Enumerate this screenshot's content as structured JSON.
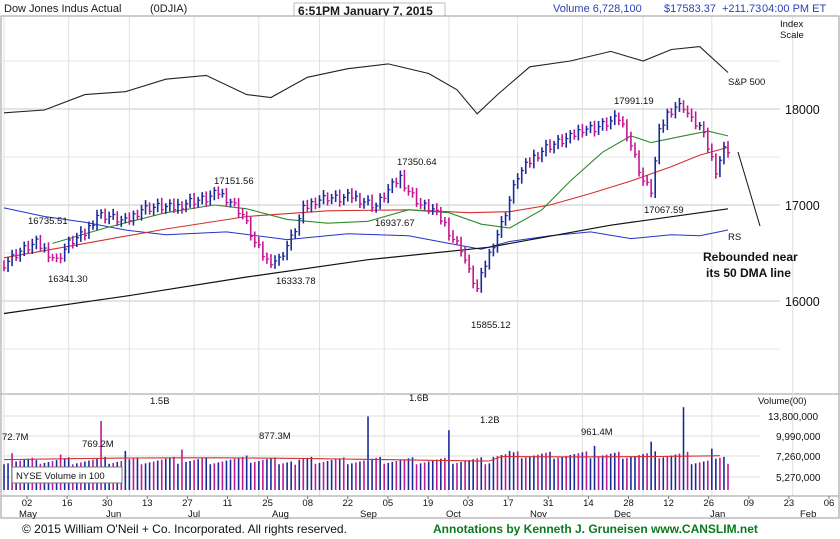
{
  "header": {
    "name": "Dow Jones Indus Actual",
    "symbol": "(0DJIA)",
    "time": "6:51PM January 7, 2015",
    "volume": "Volume 6,728,100",
    "price": "$17583.37",
    "change": "+211.73",
    "close_time": "04:00 PM ET"
  },
  "axis": {
    "index_scale_1": "Index",
    "index_scale_2": "Scale",
    "price_ticks": [
      "18000",
      "17000",
      "16000"
    ],
    "volume_title": "Volume(00)",
    "volume_ticks": [
      "13,800,000",
      "9,990,000",
      "7,260,000",
      "5,270,000"
    ],
    "date_ticks": [
      "02",
      "16",
      "30",
      "13",
      "27",
      "11",
      "25",
      "08",
      "22",
      "05",
      "19",
      "03",
      "17",
      "31",
      "14",
      "28",
      "12",
      "26",
      "09",
      "23",
      "06"
    ],
    "months": [
      "May",
      "Jun",
      "Jul",
      "Aug",
      "Sep",
      "Oct",
      "Nov",
      "Dec",
      "Jan",
      "Feb"
    ]
  },
  "labels": {
    "sp500": "S&P 500",
    "rs": "RS",
    "nyse_volume": "NYSE Volume in 100",
    "callout_1": "Rebounded near",
    "callout_2": "its 50 DMA line"
  },
  "footer": {
    "copyright": "© 2015  William O'Neil + Co. Incorporated. All rights reserved.",
    "annotations": "Annotations by Kenneth J. Gruneisen www.CANSLIM.net"
  },
  "colors": {
    "up": "#1a2a9a",
    "down": "#c2188f",
    "ma50": "#2e8b2e",
    "ma200": "#111111",
    "ma10": "#d43030",
    "rs": "#2233cc",
    "sp": "#222222",
    "vol_avg": "#d43030"
  },
  "chart_data": {
    "type": "candlestick",
    "title": "Dow Jones Indus Actual",
    "ylim": [
      15000,
      19000
    ],
    "price_annotations": [
      {
        "label": "16735.51",
        "value": 16735.51
      },
      {
        "label": "16341.30",
        "value": 16341.3
      },
      {
        "label": "17151.56",
        "value": 17151.56
      },
      {
        "label": "16333.78",
        "value": 16333.78
      },
      {
        "label": "16937.67",
        "value": 16937.67
      },
      {
        "label": "17350.64",
        "value": 17350.64
      },
      {
        "label": "15855.12",
        "value": 15855.12
      },
      {
        "label": "17991.19",
        "value": 17991.19
      },
      {
        "label": "17067.59",
        "value": 17067.59
      }
    ],
    "volume_annotations": [
      {
        "label": "72.7M"
      },
      {
        "label": "769.2M"
      },
      {
        "label": "1.5B"
      },
      {
        "label": "877.3M"
      },
      {
        "label": "1.6B"
      },
      {
        "label": "1.2B"
      },
      {
        "label": "961.4M"
      }
    ],
    "close_series": [
      {
        "t": 0,
        "v": 16390
      },
      {
        "t": 4,
        "v": 16520
      },
      {
        "t": 8,
        "v": 16600
      },
      {
        "t": 11,
        "v": 16500
      },
      {
        "t": 13,
        "v": 16420
      },
      {
        "t": 16,
        "v": 16600
      },
      {
        "t": 20,
        "v": 16700
      },
      {
        "t": 23,
        "v": 16900
      },
      {
        "t": 26,
        "v": 16880
      },
      {
        "t": 30,
        "v": 16820
      },
      {
        "t": 34,
        "v": 16960
      },
      {
        "t": 38,
        "v": 16980
      },
      {
        "t": 42,
        "v": 16970
      },
      {
        "t": 46,
        "v": 17040
      },
      {
        "t": 50,
        "v": 17060
      },
      {
        "t": 53,
        "v": 17130
      },
      {
        "t": 56,
        "v": 17040
      },
      {
        "t": 59,
        "v": 16900
      },
      {
        "t": 62,
        "v": 16600
      },
      {
        "t": 65,
        "v": 16420
      },
      {
        "t": 68,
        "v": 16430
      },
      {
        "t": 71,
        "v": 16650
      },
      {
        "t": 74,
        "v": 16950
      },
      {
        "t": 77,
        "v": 17050
      },
      {
        "t": 80,
        "v": 17080
      },
      {
        "t": 83,
        "v": 17060
      },
      {
        "t": 86,
        "v": 17090
      },
      {
        "t": 89,
        "v": 17040
      },
      {
        "t": 92,
        "v": 16990
      },
      {
        "t": 95,
        "v": 17150
      },
      {
        "t": 98,
        "v": 17290
      },
      {
        "t": 100,
        "v": 17150
      },
      {
        "t": 103,
        "v": 17000
      },
      {
        "t": 106,
        "v": 16950
      },
      {
        "t": 109,
        "v": 16800
      },
      {
        "t": 111,
        "v": 16650
      },
      {
        "t": 113,
        "v": 16550
      },
      {
        "t": 115,
        "v": 16300
      },
      {
        "t": 117,
        "v": 16120
      },
      {
        "t": 119,
        "v": 16380
      },
      {
        "t": 121,
        "v": 16600
      },
      {
        "t": 123,
        "v": 16800
      },
      {
        "t": 125,
        "v": 17050
      },
      {
        "t": 127,
        "v": 17300
      },
      {
        "t": 129,
        "v": 17400
      },
      {
        "t": 131,
        "v": 17500
      },
      {
        "t": 134,
        "v": 17600
      },
      {
        "t": 137,
        "v": 17650
      },
      {
        "t": 140,
        "v": 17700
      },
      {
        "t": 143,
        "v": 17800
      },
      {
        "t": 146,
        "v": 17800
      },
      {
        "t": 149,
        "v": 17850
      },
      {
        "t": 152,
        "v": 17900
      },
      {
        "t": 154,
        "v": 17750
      },
      {
        "t": 156,
        "v": 17500
      },
      {
        "t": 158,
        "v": 17250
      },
      {
        "t": 160,
        "v": 17150
      },
      {
        "t": 162,
        "v": 17750
      },
      {
        "t": 164,
        "v": 17950
      },
      {
        "t": 166,
        "v": 18030
      },
      {
        "t": 168,
        "v": 18030
      },
      {
        "t": 170,
        "v": 17880
      },
      {
        "t": 172,
        "v": 17820
      },
      {
        "t": 174,
        "v": 17600
      },
      {
        "t": 176,
        "v": 17370
      },
      {
        "t": 178,
        "v": 17580
      }
    ],
    "ma50": [
      {
        "t": 12,
        "v": 16600
      },
      {
        "t": 25,
        "v": 16760
      },
      {
        "t": 40,
        "v": 16920
      },
      {
        "t": 52,
        "v": 17000
      },
      {
        "t": 60,
        "v": 16960
      },
      {
        "t": 70,
        "v": 16850
      },
      {
        "t": 80,
        "v": 16810
      },
      {
        "t": 90,
        "v": 16830
      },
      {
        "t": 100,
        "v": 16950
      },
      {
        "t": 110,
        "v": 16920
      },
      {
        "t": 118,
        "v": 16800
      },
      {
        "t": 125,
        "v": 16760
      },
      {
        "t": 133,
        "v": 16950
      },
      {
        "t": 140,
        "v": 17250
      },
      {
        "t": 148,
        "v": 17550
      },
      {
        "t": 155,
        "v": 17720
      },
      {
        "t": 160,
        "v": 17650
      },
      {
        "t": 168,
        "v": 17720
      },
      {
        "t": 174,
        "v": 17770
      },
      {
        "t": 179,
        "v": 17720
      }
    ],
    "ma10": [
      {
        "t": 0,
        "v": 16450
      },
      {
        "t": 20,
        "v": 16600
      },
      {
        "t": 40,
        "v": 16750
      },
      {
        "t": 60,
        "v": 16880
      },
      {
        "t": 80,
        "v": 16940
      },
      {
        "t": 100,
        "v": 16950
      },
      {
        "t": 115,
        "v": 16920
      },
      {
        "t": 125,
        "v": 16930
      },
      {
        "t": 135,
        "v": 17000
      },
      {
        "t": 145,
        "v": 17120
      },
      {
        "t": 155,
        "v": 17250
      },
      {
        "t": 165,
        "v": 17400
      },
      {
        "t": 172,
        "v": 17520
      },
      {
        "t": 179,
        "v": 17600
      }
    ],
    "ma200": [
      {
        "t": 0,
        "v": 15870
      },
      {
        "t": 30,
        "v": 16050
      },
      {
        "t": 60,
        "v": 16250
      },
      {
        "t": 90,
        "v": 16430
      },
      {
        "t": 120,
        "v": 16560
      },
      {
        "t": 150,
        "v": 16790
      },
      {
        "t": 179,
        "v": 16960
      }
    ],
    "rs_line": [
      {
        "t": 0,
        "v": 16970
      },
      {
        "t": 10,
        "v": 16880
      },
      {
        "t": 20,
        "v": 16820
      },
      {
        "t": 30,
        "v": 16740
      },
      {
        "t": 40,
        "v": 16690
      },
      {
        "t": 55,
        "v": 16720
      },
      {
        "t": 70,
        "v": 16640
      },
      {
        "t": 85,
        "v": 16700
      },
      {
        "t": 100,
        "v": 16680
      },
      {
        "t": 110,
        "v": 16600
      },
      {
        "t": 118,
        "v": 16540
      },
      {
        "t": 125,
        "v": 16620
      },
      {
        "t": 135,
        "v": 16680
      },
      {
        "t": 145,
        "v": 16720
      },
      {
        "t": 155,
        "v": 16650
      },
      {
        "t": 165,
        "v": 16690
      },
      {
        "t": 172,
        "v": 16680
      },
      {
        "t": 179,
        "v": 16740
      }
    ],
    "sp500_line": [
      {
        "t": 0,
        "v": 17960
      },
      {
        "t": 10,
        "v": 17990
      },
      {
        "t": 20,
        "v": 18150
      },
      {
        "t": 30,
        "v": 18180
      },
      {
        "t": 40,
        "v": 18310
      },
      {
        "t": 50,
        "v": 18350
      },
      {
        "t": 60,
        "v": 18150
      },
      {
        "t": 66,
        "v": 18120
      },
      {
        "t": 75,
        "v": 18330
      },
      {
        "t": 85,
        "v": 18420
      },
      {
        "t": 95,
        "v": 18470
      },
      {
        "t": 105,
        "v": 18370
      },
      {
        "t": 112,
        "v": 18200
      },
      {
        "t": 117,
        "v": 17950
      },
      {
        "t": 122,
        "v": 18150
      },
      {
        "t": 130,
        "v": 18440
      },
      {
        "t": 140,
        "v": 18500
      },
      {
        "t": 150,
        "v": 18600
      },
      {
        "t": 158,
        "v": 18500
      },
      {
        "t": 165,
        "v": 18620
      },
      {
        "t": 172,
        "v": 18650
      },
      {
        "t": 179,
        "v": 18380
      }
    ],
    "volume_bars": [
      {
        "t": 2,
        "v": 8.0
      },
      {
        "t": 8,
        "v": 6.5
      },
      {
        "t": 14,
        "v": 7.7
      },
      {
        "t": 24,
        "v": 15.0
      },
      {
        "t": 30,
        "v": 8.5
      },
      {
        "t": 44,
        "v": 8.8
      },
      {
        "t": 60,
        "v": 7.5
      },
      {
        "t": 72,
        "v": 5.5
      },
      {
        "t": 90,
        "v": 16.0
      },
      {
        "t": 110,
        "v": 13.0
      },
      {
        "t": 125,
        "v": 8.5
      },
      {
        "t": 146,
        "v": 9.6
      },
      {
        "t": 160,
        "v": 10.5
      },
      {
        "t": 168,
        "v": 18.0
      },
      {
        "t": 175,
        "v": 9.0
      }
    ]
  }
}
